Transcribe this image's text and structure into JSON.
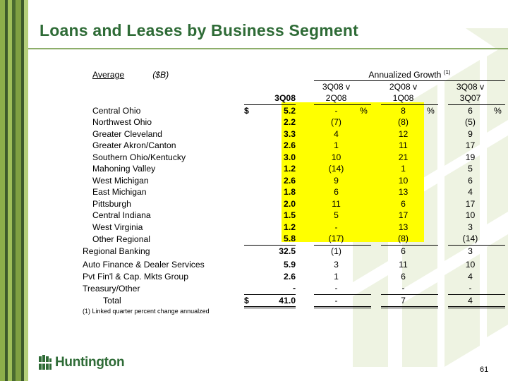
{
  "slide": {
    "title": "Loans and Leases by Business Segment",
    "page_number": "61",
    "brand": "Huntington",
    "footnote": "(1)  Linked quarter percent change annualzed"
  },
  "table": {
    "header": {
      "average": "Average",
      "unit": "($B)",
      "growth": "Annualized Growth",
      "growth_note": "(1)",
      "col_value": "3Q08",
      "col1_top": "3Q08 v",
      "col1_bottom": "2Q08",
      "col2_top": "2Q08 v",
      "col2_bottom": "1Q08",
      "col3_top": "3Q08 v",
      "col3_bottom": "3Q07"
    },
    "rows": [
      {
        "label": "Central Ohio",
        "dollar": "$",
        "value": "5.2",
        "g1": "-",
        "g1p": "%",
        "g2": "8",
        "g2p": "%",
        "g3": "6",
        "g3p": "%"
      },
      {
        "label": "Northwest Ohio",
        "value": "2.2",
        "g1": "(7)",
        "g2": "(8)",
        "g3": "(5)"
      },
      {
        "label": "Greater Cleveland",
        "value": "3.3",
        "g1": "4",
        "g2": "12",
        "g3": "9"
      },
      {
        "label": "Greater Akron/Canton",
        "value": "2.6",
        "g1": "1",
        "g2": "11",
        "g3": "17"
      },
      {
        "label": "Southern Ohio/Kentucky",
        "value": "3.0",
        "g1": "10",
        "g2": "21",
        "g3": "19"
      },
      {
        "label": "Mahoning Valley",
        "value": "1.2",
        "g1": "(14)",
        "g2": "1",
        "g3": "5"
      },
      {
        "label": "West Michigan",
        "value": "2.6",
        "g1": "9",
        "g2": "10",
        "g3": "6"
      },
      {
        "label": "East Michigan",
        "value": "1.8",
        "g1": "6",
        "g2": "13",
        "g3": "4"
      },
      {
        "label": "Pittsburgh",
        "value": "2.0",
        "g1": "11",
        "g2": "6",
        "g3": "17"
      },
      {
        "label": "Central Indiana",
        "value": "1.5",
        "g1": "5",
        "g2": "17",
        "g3": "10"
      },
      {
        "label": "West Virginia",
        "value": "1.2",
        "g1": "-",
        "g2": "13",
        "g3": "3"
      },
      {
        "label": "Other Regional",
        "value": "5.8",
        "g1": "(17)",
        "g2": "(8)",
        "g3": "(14)"
      }
    ],
    "regional": {
      "label": "Regional Banking",
      "value": "32.5",
      "g1": "(1)",
      "g2": "6",
      "g3": "3"
    },
    "others": [
      {
        "label": "Auto Finance & Dealer Services",
        "value": "5.9",
        "g1": "3",
        "g2": "11",
        "g3": "10"
      },
      {
        "label": "Pvt Fin'l & Cap. Mkts Group",
        "value": "2.6",
        "g1": "1",
        "g2": "6",
        "g3": "4"
      },
      {
        "label": "Treasury/Other",
        "value": "-",
        "g1": "-",
        "g2": "-",
        "g3": "-"
      }
    ],
    "total": {
      "label": "Total",
      "dollar": "$",
      "value": "41.0",
      "g1": "-",
      "g2": "7",
      "g3": "4"
    }
  },
  "colors": {
    "brand_green": "#2e6b36",
    "highlight": "#ffff00",
    "sidebar_dark": "#3d5a2a",
    "sidebar_light": "#8dae4a"
  }
}
